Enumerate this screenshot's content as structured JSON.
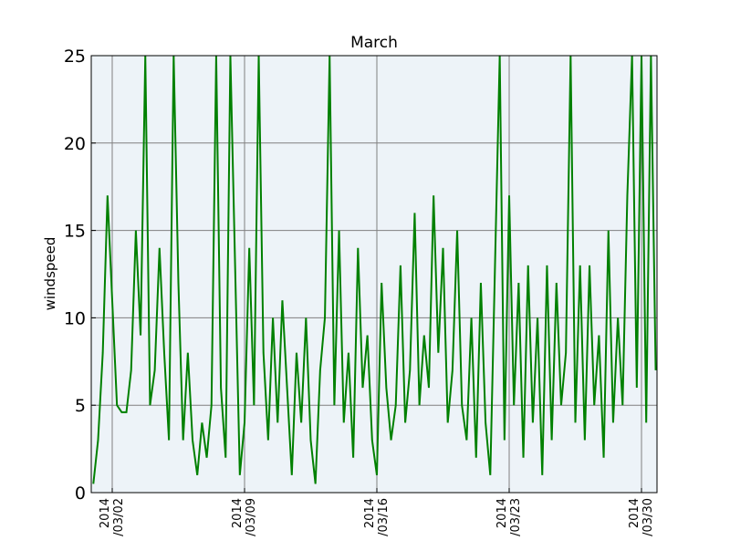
{
  "chart_data": {
    "type": "line",
    "title": "March",
    "ylabel": "windspeed",
    "color": "#008000",
    "background": "#edf3f8",
    "grid": true,
    "x": [
      1,
      1.25,
      1.5,
      1.75,
      2,
      2.25,
      2.5,
      2.75,
      3,
      3.25,
      3.5,
      3.75,
      4,
      4.25,
      4.5,
      4.75,
      5,
      5.25,
      5.5,
      5.75,
      6,
      6.25,
      6.5,
      6.75,
      7,
      7.25,
      7.5,
      7.75,
      8,
      8.25,
      8.5,
      8.75,
      9,
      9.25,
      9.5,
      9.75,
      10,
      10.25,
      10.5,
      10.75,
      11,
      11.25,
      11.5,
      11.75,
      12,
      12.25,
      12.5,
      12.75,
      13,
      13.25,
      13.5,
      13.75,
      14,
      14.25,
      14.5,
      14.75,
      15,
      15.25,
      15.5,
      15.75,
      16,
      16.25,
      16.5,
      16.75,
      17,
      17.25,
      17.5,
      17.75,
      18,
      18.25,
      18.5,
      18.75,
      19,
      19.25,
      19.5,
      19.75,
      20,
      20.25,
      20.5,
      20.75,
      21,
      21.25,
      21.5,
      21.75,
      22,
      22.25,
      22.5,
      22.75,
      23,
      23.25,
      23.5,
      23.75,
      24,
      24.25,
      24.5,
      24.75,
      25,
      25.25,
      25.5,
      25.75,
      26,
      26.25,
      26.5,
      26.75,
      27,
      27.25,
      27.5,
      27.75,
      28,
      28.25,
      28.5,
      28.75,
      29,
      29.25,
      29.5,
      29.75,
      30,
      30.25,
      30.5,
      30.75
    ],
    "values": [
      0.5,
      3,
      8,
      17,
      11,
      5,
      4.6,
      4.6,
      7,
      15,
      9,
      25,
      5,
      7,
      14,
      8,
      3,
      25,
      12,
      3,
      8,
      3,
      1,
      4,
      2,
      5,
      25,
      6,
      2,
      25,
      13,
      1,
      4,
      14,
      5,
      25,
      8,
      3,
      10,
      4,
      11,
      6,
      1,
      8,
      4,
      10,
      3,
      0.5,
      7,
      10,
      25,
      5,
      15,
      4,
      8,
      2,
      14,
      6,
      9,
      3,
      1,
      12,
      6,
      3,
      5,
      13,
      4,
      7,
      16,
      5,
      9,
      6,
      17,
      8,
      14,
      4,
      7,
      15,
      5,
      3,
      10,
      2,
      12,
      4,
      1,
      13,
      25,
      3,
      17,
      5,
      12,
      2,
      13,
      4,
      10,
      1,
      13,
      3,
      12,
      5,
      8,
      25,
      4,
      13,
      3,
      13,
      5,
      9,
      2,
      15,
      4,
      10,
      5,
      17,
      25,
      6,
      25,
      4,
      25,
      7
    ],
    "xlim": [
      0.89,
      30.82
    ],
    "xticks": [
      {
        "value": 2,
        "label": "2014\n/03/02"
      },
      {
        "value": 9,
        "label": "2014\n/03/09"
      },
      {
        "value": 16,
        "label": "2014\n/03/16"
      },
      {
        "value": 23,
        "label": "2014\n/03/23"
      },
      {
        "value": 30,
        "label": "2014\n/03/30"
      }
    ],
    "ylim": [
      0,
      25
    ],
    "yticks": [
      0,
      5,
      10,
      15,
      20,
      25
    ]
  }
}
